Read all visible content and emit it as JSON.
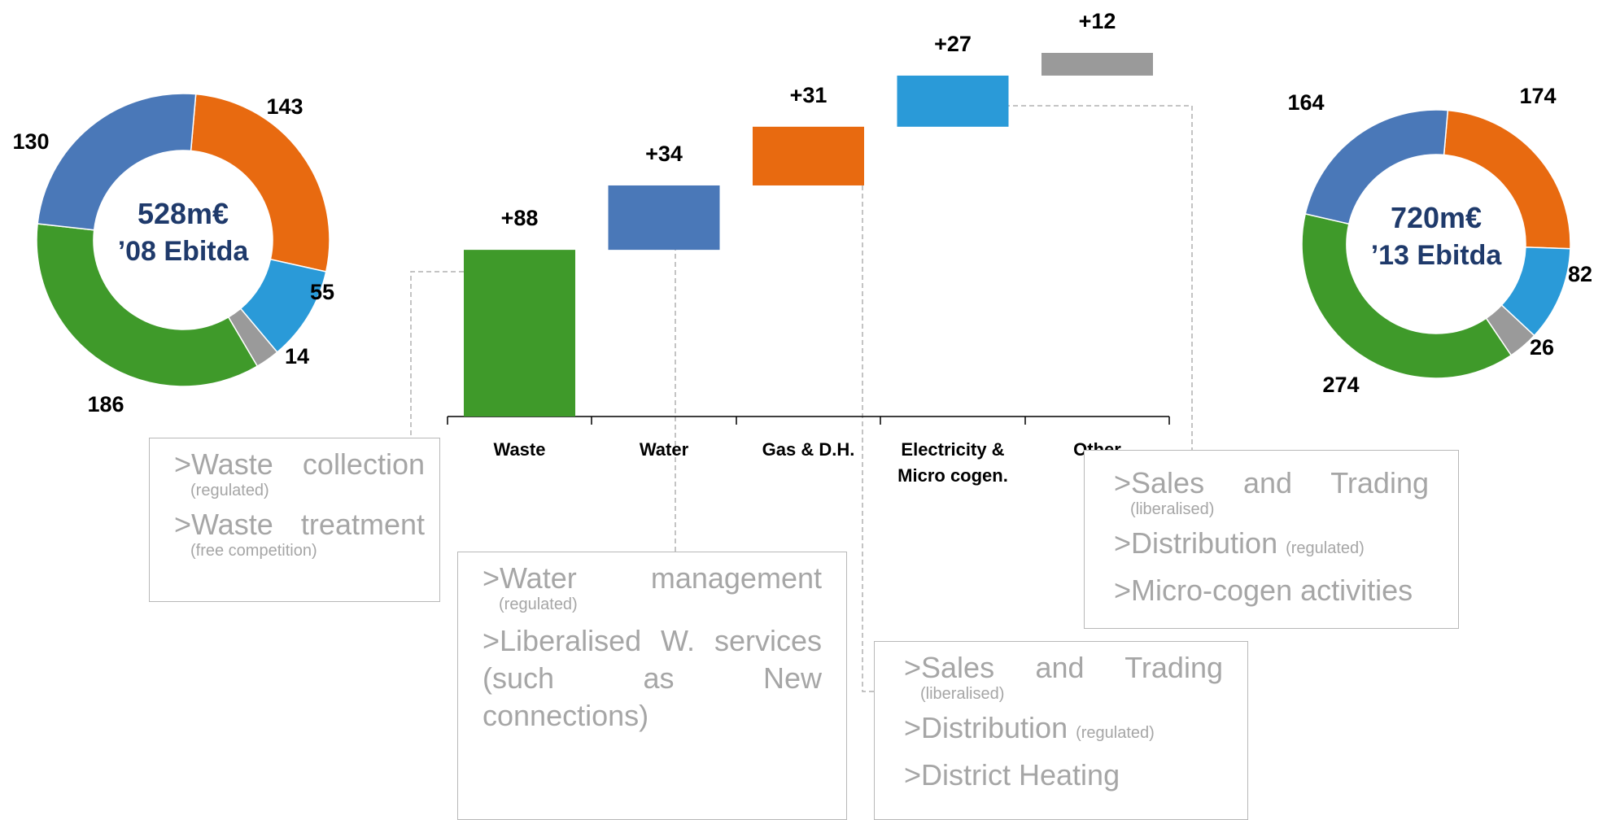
{
  "colors": {
    "waste": "#3f9a2a",
    "water": "#4a78b8",
    "gas": "#e86a10",
    "electricity": "#2a9ad8",
    "other": "#9a9a9a",
    "center_text": "#1f3a6b",
    "box_text": "#a6a6a6"
  },
  "chart_data": [
    {
      "type": "pie",
      "center_value": "528m€",
      "center_label": "’08 Ebitda",
      "slices": [
        {
          "category": "Gas & D.H.",
          "value": 143,
          "label": "143",
          "color": "#e86a10"
        },
        {
          "category": "Electricity & Micro cogen.",
          "value": 55,
          "label": "55",
          "color": "#2a9ad8"
        },
        {
          "category": "Other",
          "value": 14,
          "label": "14",
          "color": "#9a9a9a"
        },
        {
          "category": "Waste",
          "value": 186,
          "label": "186",
          "color": "#3f9a2a"
        },
        {
          "category": "Water",
          "value": 130,
          "label": "130",
          "color": "#4a78b8"
        }
      ]
    },
    {
      "type": "bar",
      "subtype": "waterfall",
      "categories": [
        "Waste",
        "Water",
        "Gas & D.H.",
        "Electricity & Micro cogen.",
        "Other"
      ],
      "category_lines": [
        [
          "Waste"
        ],
        [
          "Water"
        ],
        [
          "Gas & D.H."
        ],
        [
          "Electricity &",
          "Micro cogen."
        ],
        [
          "Other"
        ]
      ],
      "values": [
        88,
        34,
        31,
        27,
        12
      ],
      "labels": [
        "+88",
        "+34",
        "+31",
        "+27",
        "+12"
      ],
      "colors": [
        "#3f9a2a",
        "#4a78b8",
        "#e86a10",
        "#2a9ad8",
        "#9a9a9a"
      ],
      "ylim": [
        528,
        720
      ]
    },
    {
      "type": "pie",
      "center_value": "720m€",
      "center_label": "’13 Ebitda",
      "slices": [
        {
          "category": "Gas & D.H.",
          "value": 174,
          "label": "174",
          "color": "#e86a10"
        },
        {
          "category": "Electricity & Micro cogen.",
          "value": 82,
          "label": "82",
          "color": "#2a9ad8"
        },
        {
          "category": "Other",
          "value": 26,
          "label": "26",
          "color": "#9a9a9a"
        },
        {
          "category": "Waste",
          "value": 274,
          "label": "274",
          "color": "#3f9a2a"
        },
        {
          "category": "Water",
          "value": 164,
          "label": "164",
          "color": "#4a78b8"
        }
      ]
    }
  ],
  "boxes": {
    "waste": {
      "line1": ">Waste collection",
      "sub1": "(regulated)",
      "line2": ">Waste treatment",
      "sub2": "(free competition)"
    },
    "water": {
      "line1": ">Water management",
      "sub1": "(regulated)",
      "line2": ">Liberalised W. services (such as New connections)"
    },
    "gas": {
      "line1": ">Sales and Trading",
      "sub1": "(liberalised)",
      "line2": ">Distribution",
      "sub2": "(regulated)",
      "line3": ">District Heating"
    },
    "electricity": {
      "line1": ">Sales and Trading",
      "sub1": "(liberalised)",
      "line2": ">Distribution",
      "sub2": "(regulated)",
      "line3": ">Micro-cogen activities"
    }
  }
}
